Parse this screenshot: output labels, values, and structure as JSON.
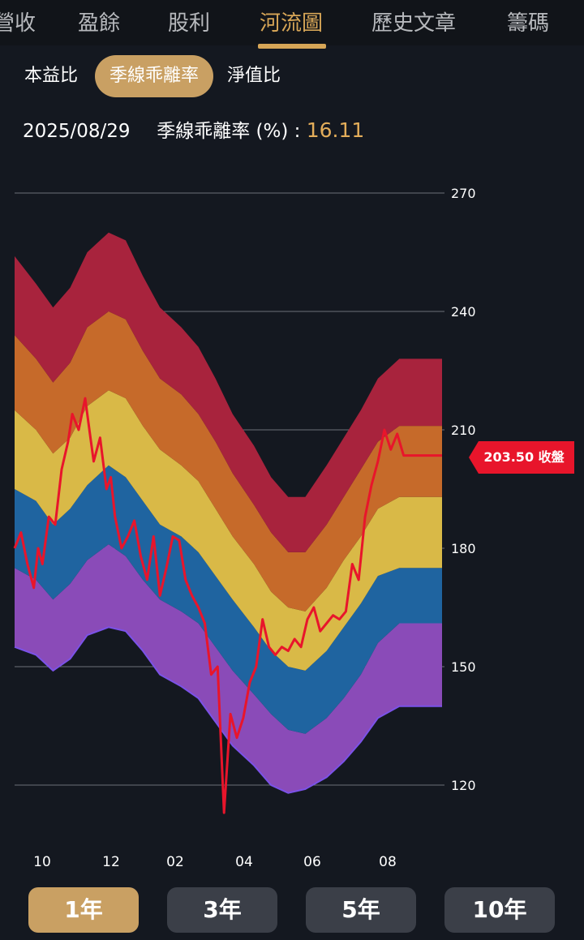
{
  "tabs": [
    {
      "label": "營收",
      "active": false
    },
    {
      "label": "盈餘",
      "active": false
    },
    {
      "label": "股利",
      "active": false
    },
    {
      "label": "河流圖",
      "active": true
    },
    {
      "label": "歷史文章",
      "active": false
    },
    {
      "label": "籌碼",
      "active": false
    }
  ],
  "metrics": [
    {
      "label": "本益比",
      "active": false
    },
    {
      "label": "季線乖離率",
      "active": true
    },
    {
      "label": "淨值比",
      "active": false
    }
  ],
  "info": {
    "date": "2025/08/29",
    "label": "季線乖離率 (%) :",
    "value": "16.11"
  },
  "price_tag": "203.50 收盤",
  "periods": [
    {
      "label": "1年",
      "active": true
    },
    {
      "label": "3年",
      "active": false
    },
    {
      "label": "5年",
      "active": false
    },
    {
      "label": "10年",
      "active": false
    }
  ],
  "colors": {
    "accent": "#d7a657",
    "price_line": "#e8152b",
    "band_top": "#a8233d",
    "band_2": "#c66a2a",
    "band_3": "#d9b947",
    "band_4": "#1f64a0",
    "band_5": "#8a4bb8",
    "background": "#141820"
  },
  "chart_data": {
    "type": "area",
    "y_ticks": [
      270,
      240,
      210,
      180,
      150,
      120
    ],
    "ylim": [
      112,
      276
    ],
    "x_labels": [
      "10",
      "12",
      "02",
      "04",
      "06",
      "08"
    ],
    "grid": true,
    "bands": {
      "x": [
        0,
        5,
        9,
        13,
        17,
        22,
        26,
        30,
        34,
        39,
        43,
        47,
        51,
        56,
        60,
        64,
        68,
        73,
        77,
        81,
        85,
        90,
        94,
        98,
        100
      ],
      "base": [
        155,
        153,
        149,
        152,
        158,
        160,
        159,
        154,
        148,
        145,
        142,
        136,
        130,
        125,
        120,
        118,
        119,
        122,
        126,
        131,
        137,
        140,
        140,
        140,
        140
      ],
      "upper": [
        [
          175,
          172,
          167,
          171,
          177,
          181,
          178,
          172,
          167,
          164,
          161,
          155,
          149,
          143,
          138,
          134,
          133,
          137,
          142,
          148,
          156,
          161,
          161,
          161,
          161
        ],
        [
          195,
          192,
          186,
          190,
          196,
          201,
          198,
          192,
          186,
          183,
          179,
          173,
          167,
          160,
          154,
          150,
          149,
          154,
          160,
          166,
          173,
          175,
          175,
          175,
          175
        ],
        [
          215,
          210,
          204,
          208,
          216,
          220,
          218,
          211,
          205,
          201,
          197,
          190,
          183,
          176,
          169,
          165,
          164,
          170,
          177,
          183,
          190,
          193,
          193,
          193,
          193
        ],
        [
          234,
          228,
          222,
          227,
          236,
          240,
          238,
          230,
          223,
          219,
          214,
          207,
          199,
          191,
          184,
          179,
          179,
          186,
          193,
          200,
          207,
          211,
          211,
          211,
          211
        ],
        [
          254,
          247,
          241,
          246,
          255,
          260,
          258,
          249,
          241,
          236,
          231,
          223,
          214,
          206,
          198,
          193,
          193,
          201,
          208,
          215,
          223,
          228,
          228,
          228,
          228
        ]
      ]
    },
    "price_series": {
      "x": [
        0,
        1.5,
        3,
        4.5,
        5.5,
        6.5,
        8,
        9.5,
        11,
        12.5,
        13.5,
        15,
        16.5,
        17.5,
        18.5,
        20,
        21.5,
        22.5,
        23.5,
        25,
        26.5,
        28,
        29.5,
        31,
        32.5,
        34,
        35.5,
        37,
        38.5,
        40,
        41.5,
        43,
        44.5,
        46,
        47.5,
        49,
        50.5,
        52,
        53.5,
        55,
        56.5,
        58,
        59.5,
        61,
        62.5,
        64,
        65.5,
        67,
        68.5,
        70,
        71.5,
        73,
        74.5,
        76,
        77.5,
        79,
        80.5,
        82,
        83.5,
        85,
        86.5,
        88,
        89.5,
        91,
        92.5,
        94,
        95.5,
        97,
        98.5,
        100
      ],
      "y": [
        180,
        184,
        176,
        170,
        180,
        176,
        188,
        186,
        200,
        207,
        214,
        210,
        218,
        210,
        202,
        208,
        195,
        198,
        188,
        180,
        183,
        187,
        178,
        172,
        183,
        168,
        175,
        183,
        182,
        172,
        168,
        165,
        161,
        148,
        150,
        113,
        138,
        132,
        137,
        146,
        150,
        162,
        155,
        153,
        155,
        154,
        157,
        155,
        162,
        165,
        159,
        161,
        163,
        162,
        164,
        176,
        172,
        188,
        196,
        202,
        210,
        205,
        209,
        203.5,
        203.5,
        203.5,
        203.5,
        203.5,
        203.5,
        203.5
      ]
    },
    "last_price": 203.5
  }
}
